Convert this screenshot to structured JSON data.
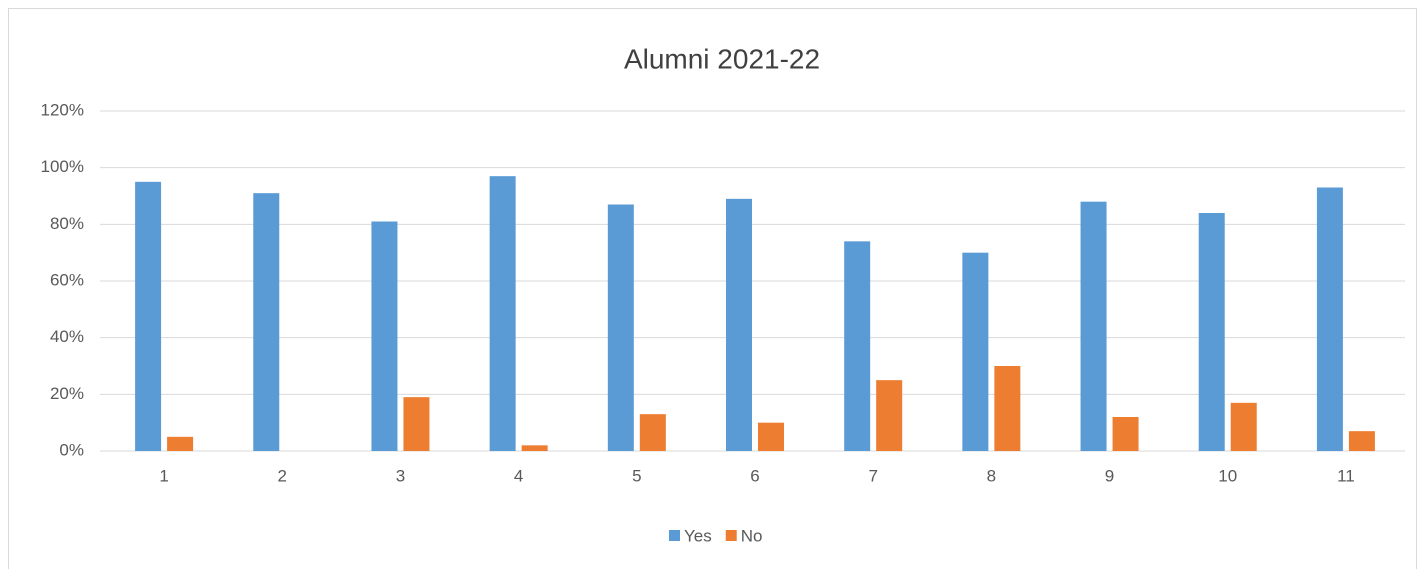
{
  "chart_data": {
    "type": "bar",
    "title": "Alumni 2021-22",
    "categories": [
      "1",
      "2",
      "3",
      "4",
      "5",
      "6",
      "7",
      "8",
      "9",
      "10",
      "11"
    ],
    "series": [
      {
        "name": "Yes",
        "color": "#5b9bd5",
        "values": [
          95,
          91,
          81,
          97,
          87,
          89,
          74,
          70,
          88,
          84,
          93
        ]
      },
      {
        "name": "No",
        "color": "#ed7d31",
        "values": [
          5,
          0,
          19,
          2,
          13,
          10,
          25,
          30,
          12,
          17,
          7
        ]
      }
    ],
    "ylim": [
      0,
      120
    ],
    "yticks": [
      {
        "value": 0,
        "label": "0%"
      },
      {
        "value": 20,
        "label": "20%"
      },
      {
        "value": 40,
        "label": "40%"
      },
      {
        "value": 60,
        "label": "60%"
      },
      {
        "value": 80,
        "label": "80%"
      },
      {
        "value": 100,
        "label": "100%"
      },
      {
        "value": 120,
        "label": "120%"
      }
    ],
    "grid": true,
    "legend": "bottom"
  }
}
